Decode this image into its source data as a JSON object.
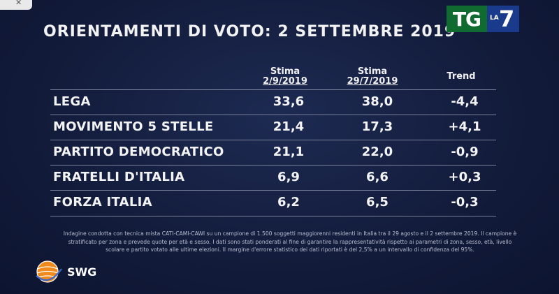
{
  "title": "ORIENTAMENTI DI VOTO: 2 SETTEMBRE 2019",
  "broadcaster": {
    "tg": "TG",
    "la": "LA",
    "seven": "7"
  },
  "chart_data": {
    "type": "table",
    "columns": [
      {
        "label": "Stima",
        "sub": "2/9/2019"
      },
      {
        "label": "Stima",
        "sub": "29/7/2019"
      },
      {
        "label": "Trend",
        "sub": ""
      }
    ],
    "rows": [
      {
        "party": "LEGA",
        "values": [
          "33,6",
          "38,0",
          "-4,4"
        ]
      },
      {
        "party": "MOVIMENTO 5 STELLE",
        "values": [
          "21,4",
          "17,3",
          "+4,1"
        ]
      },
      {
        "party": "PARTITO DEMOCRATICO",
        "values": [
          "21,1",
          "22,0",
          "-0,9"
        ]
      },
      {
        "party": "FRATELLI D'ITALIA",
        "values": [
          "6,9",
          "6,6",
          "+0,3"
        ]
      },
      {
        "party": "FORZA ITALIA",
        "values": [
          "6,2",
          "6,5",
          "-0,3"
        ]
      }
    ]
  },
  "footnote": "Indagine condotta con tecnica mista CATI-CAMI-CAWI su un campione di 1.500 soggetti maggiorenni residenti in Italia tra il 29 agosto e il 2 settembre 2019. Il campione è stratificato per zona e prevede quote per età e sesso. I dati sono stati ponderati al fine di garantire la rappresentatività rispetto ai parametri di zona, sesso, età, livello scolare e partito votato alle ultime elezioni. Il margine d'errore statistico dei dati riportati è del 2,5% a un intervallo di confidenza del 95%.",
  "source_logo": {
    "text": "SWG",
    "icon": "swg-globe-icon"
  },
  "colors": {
    "background": "#121b3a",
    "tg_green": "#0f6b2f",
    "la7_blue": "#1a3a8c",
    "swg_orange": "#f08a1c",
    "rule": "#7a819a"
  }
}
